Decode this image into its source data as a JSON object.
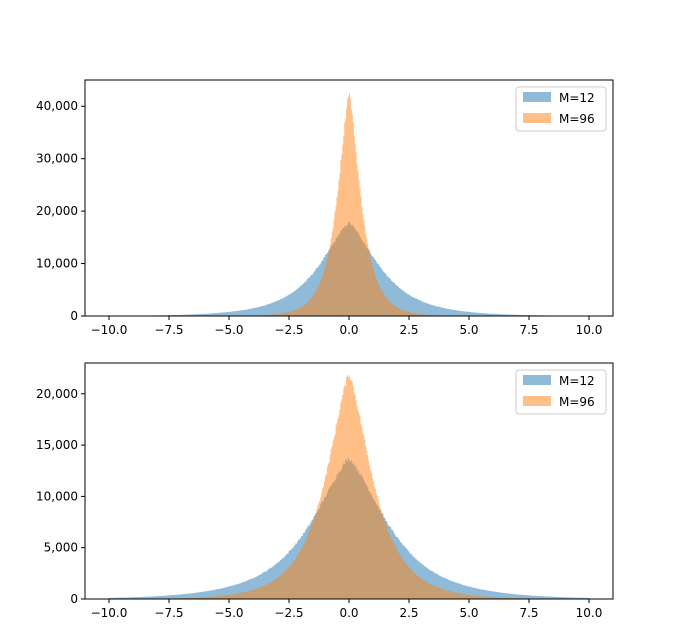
{
  "chart_data": [
    {
      "type": "histogram",
      "xlim": [
        -11,
        11
      ],
      "ylim": [
        0,
        45000
      ],
      "xticks": [
        -10.0,
        -7.5,
        -5.0,
        -2.5,
        0.0,
        2.5,
        5.0,
        7.5,
        10.0
      ],
      "xtick_labels": [
        "−10.0",
        "−7.5",
        "−5.0",
        "−2.5",
        "0.0",
        "2.5",
        "5.0",
        "7.5",
        "10.0"
      ],
      "yticks": [
        0,
        10000,
        20000,
        30000,
        40000
      ],
      "ytick_labels": [
        "0",
        "10,000",
        "20,000",
        "30,000",
        "40,000"
      ],
      "legend_position": "top-right",
      "grid": false,
      "series": [
        {
          "name": "M=12",
          "color": "#1f77b4",
          "alpha": 0.5,
          "distribution": "laplace-like",
          "peak": 17800,
          "center": 0.0,
          "scale": 1.6,
          "range": [
            -10,
            10
          ],
          "bin_width": 0.04
        },
        {
          "name": "M=96",
          "color": "#ff7f0e",
          "alpha": 0.5,
          "distribution": "laplace-like",
          "peak": 42800,
          "center": 0.0,
          "scale": 0.62,
          "range": [
            -10,
            10
          ],
          "bin_width": 0.04
        }
      ]
    },
    {
      "type": "histogram",
      "xlim": [
        -11,
        11
      ],
      "ylim": [
        0,
        23000
      ],
      "xticks": [
        -10.0,
        -7.5,
        -5.0,
        -2.5,
        0.0,
        2.5,
        5.0,
        7.5,
        10.0
      ],
      "xtick_labels": [
        "−10.0",
        "−7.5",
        "−5.0",
        "−2.5",
        "0.0",
        "2.5",
        "5.0",
        "7.5",
        "10.0"
      ],
      "yticks": [
        0,
        5000,
        10000,
        15000,
        20000
      ],
      "ytick_labels": [
        "0",
        "5,000",
        "10,000",
        "15,000",
        "20,000"
      ],
      "legend_position": "top-right",
      "grid": false,
      "series": [
        {
          "name": "M=12",
          "color": "#1f77b4",
          "alpha": 0.5,
          "distribution": "laplace-like",
          "peak": 13700,
          "center": 0.0,
          "scale": 2.05,
          "range": [
            -10,
            10
          ],
          "bin_width": 0.04
        },
        {
          "name": "M=96",
          "color": "#ff7f0e",
          "alpha": 0.5,
          "distribution": "laplace-like",
          "peak": 22000,
          "center": 0.0,
          "scale": 1.25,
          "range": [
            -10,
            10
          ],
          "bin_width": 0.04
        }
      ]
    }
  ]
}
